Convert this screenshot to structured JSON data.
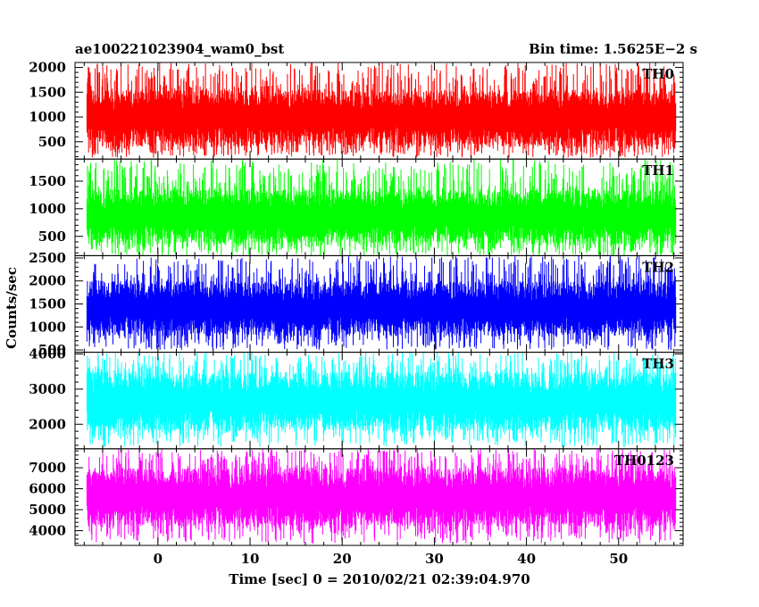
{
  "chart_data": {
    "type": "line",
    "title_left": "ae100221023904_wam0_bst",
    "title_right": "Bin time: 1.5625E−2 s",
    "xlabel": "Time [sec] 0 = 2010/02/21 02:39:04.970",
    "ylabel": "Counts/sec",
    "xlim": [
      -9,
      57
    ],
    "xticks": [
      0,
      10,
      20,
      30,
      40,
      50
    ],
    "data_x_range": [
      -7.7,
      56.2
    ],
    "series": [
      {
        "name": "TH0",
        "color": "#ff0000",
        "ylim": [
          150,
          2100
        ],
        "yticks": [
          500,
          1000,
          1500,
          2000
        ],
        "band": [
          400,
          1550
        ],
        "spikes": [
          180,
          2100
        ]
      },
      {
        "name": "TH1",
        "color": "#00ff00",
        "ylim": [
          150,
          1900
        ],
        "yticks": [
          500,
          1000,
          1500
        ],
        "band": [
          350,
          1350
        ],
        "spikes": [
          150,
          1900
        ]
      },
      {
        "name": "TH2",
        "color": "#0000ff",
        "ylim": [
          450,
          2550
        ],
        "yticks": [
          500,
          1000,
          1500,
          2000,
          2500
        ],
        "band": [
          800,
          2000
        ],
        "spikes": [
          500,
          2550
        ]
      },
      {
        "name": "TH3",
        "color": "#00ffff",
        "ylim": [
          1300,
          4050
        ],
        "yticks": [
          2000,
          3000,
          4000
        ],
        "band": [
          1800,
          3500
        ],
        "spikes": [
          1350,
          4050
        ]
      },
      {
        "name": "TH0123",
        "color": "#ff00ff",
        "ylim": [
          3300,
          7900
        ],
        "yticks": [
          4000,
          5000,
          6000,
          7000
        ],
        "band": [
          4200,
          7000
        ],
        "spikes": [
          3400,
          7900
        ]
      }
    ]
  }
}
